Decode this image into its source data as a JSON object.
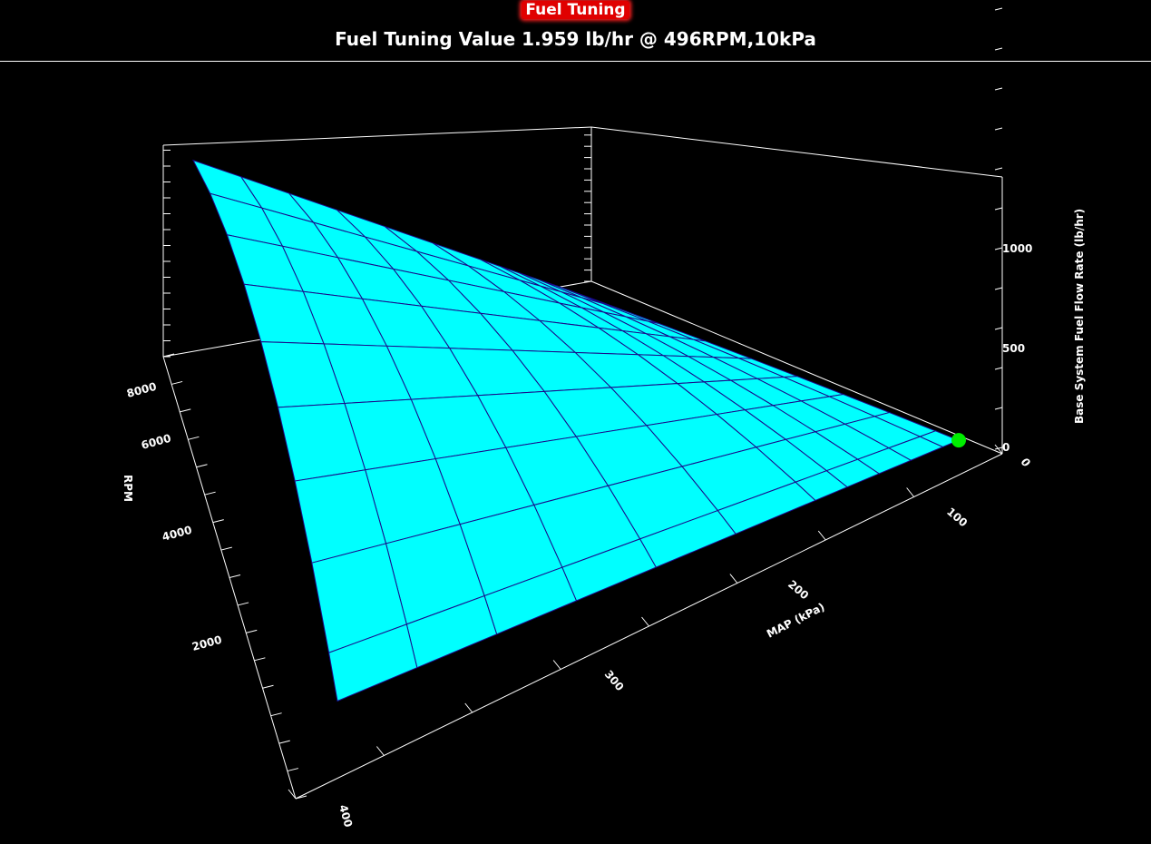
{
  "header": {
    "title": "Fuel Tuning",
    "subtitle": "Fuel Tuning Value 1.959 lb/hr @ 496RPM,10kPa"
  },
  "chart_data": {
    "type": "surface3d",
    "xlabel": "MAP (kPa)",
    "ylabel": "RPM",
    "zlabel": "Base System Fuel Flow Rate (lb/hr)",
    "x_ticks": [
      "0",
      "100",
      "200",
      "300",
      "400"
    ],
    "y_ticks": [
      "2000",
      "4000",
      "6000",
      "8000"
    ],
    "z_ticks": [
      "0",
      "500",
      "1000"
    ],
    "xlim": [
      0,
      400
    ],
    "ylim": [
      0,
      9000
    ],
    "zlim": [
      0,
      1350
    ],
    "map": [
      10,
      20,
      40,
      60,
      80,
      100,
      150,
      200,
      250,
      300,
      350,
      400
    ],
    "rpm": [
      496,
      1000,
      2000,
      3000,
      4000,
      5000,
      6000,
      7000,
      8000,
      9000
    ],
    "z": [
      [
        1.959,
        3.9,
        7.8,
        11.8,
        15.7,
        19.6,
        29.4,
        39.2,
        49.0,
        58.8,
        68.6,
        78.4
      ],
      [
        4.0,
        7.9,
        15.8,
        23.7,
        31.6,
        39.5,
        59.3,
        79.0,
        98.8,
        118.5,
        138.3,
        158.0
      ],
      [
        7.9,
        15.8,
        31.6,
        47.4,
        63.2,
        79.0,
        118.5,
        158.0,
        197.5,
        237.0,
        276.5,
        316.0
      ],
      [
        11.9,
        23.7,
        47.4,
        71.1,
        94.8,
        118.5,
        177.8,
        237.0,
        296.3,
        355.5,
        414.8,
        474.0
      ],
      [
        15.8,
        31.6,
        63.2,
        94.8,
        126.4,
        158.0,
        237.0,
        316.0,
        395.0,
        474.0,
        553.0,
        632.0
      ],
      [
        19.8,
        39.5,
        79.0,
        118.5,
        158.0,
        197.5,
        296.3,
        395.0,
        493.8,
        592.5,
        691.3,
        790.0
      ],
      [
        23.7,
        47.4,
        94.8,
        142.2,
        189.6,
        237.0,
        355.5,
        474.0,
        592.5,
        711.0,
        829.5,
        948.0
      ],
      [
        27.7,
        55.3,
        110.6,
        165.9,
        221.2,
        276.5,
        414.8,
        553.0,
        691.3,
        829.5,
        967.8,
        1106.0
      ],
      [
        31.6,
        63.2,
        126.4,
        189.6,
        252.8,
        316.0,
        474.0,
        632.0,
        790.0,
        948.0,
        1106.0,
        1264.0
      ],
      [
        35.6,
        71.1,
        142.2,
        213.3,
        284.4,
        355.5,
        533.3,
        711.0,
        888.8,
        1066.5,
        1244.3,
        1422.0
      ]
    ],
    "highlight_point": {
      "rpm": 496,
      "map": 10,
      "value": 1.959
    },
    "colors": {
      "surface": "#00ffff",
      "mesh": "#1a0a8a",
      "marker": "#00ee00",
      "axes": "#ffffff"
    }
  }
}
